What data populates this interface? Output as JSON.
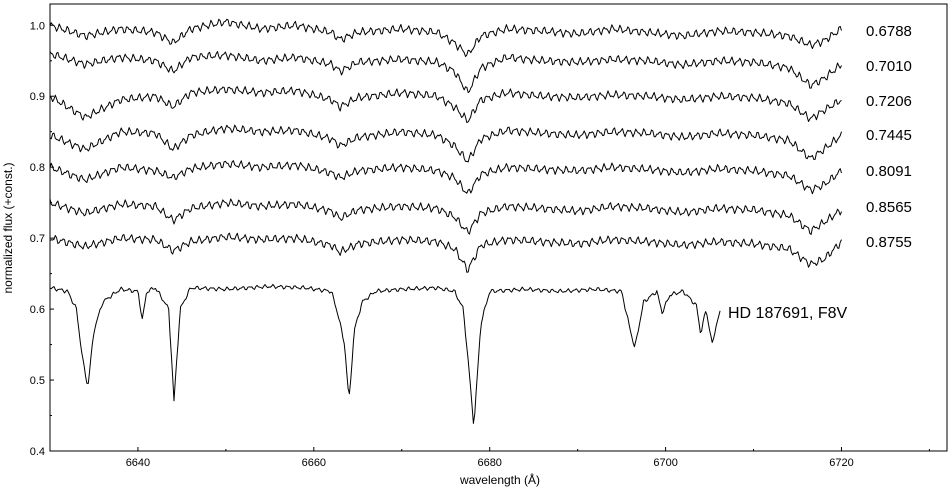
{
  "chart_data": {
    "type": "line",
    "title": "",
    "xlabel": "wavelength (Å)",
    "ylabel": "normalized flux (+const.)",
    "xlim": [
      6630,
      6732
    ],
    "ylim": [
      0.4,
      1.03
    ],
    "x_ticks": [
      6640,
      6660,
      6680,
      6700,
      6720
    ],
    "y_ticks": [
      0.4,
      0.5,
      0.6,
      0.7,
      0.8,
      0.9,
      1.0
    ],
    "x_tick_labels": [
      "6640",
      "6660",
      "6680",
      "6700",
      "6720"
    ],
    "y_tick_labels": [
      "0.4",
      "0.5",
      "0.6",
      "0.7",
      "0.8",
      "0.9",
      "1.0"
    ],
    "grid": false,
    "series": [
      {
        "name": "0.6788",
        "x": [
          6630,
          6634,
          6638,
          6642,
          6644,
          6646,
          6650,
          6654,
          6658,
          6662,
          6663,
          6665,
          6670,
          6674,
          6676,
          6677.5,
          6679,
          6682,
          6686,
          6690,
          6694,
          6698,
          6702,
          6706,
          6710,
          6714,
          6716.5,
          6718,
          6720
        ],
        "y": [
          1.0,
          0.985,
          0.995,
          0.99,
          0.975,
          0.995,
          1.005,
          0.995,
          1.0,
          0.99,
          0.98,
          0.99,
          0.995,
          0.99,
          0.975,
          0.958,
          0.985,
          0.995,
          0.992,
          0.988,
          0.995,
          0.99,
          0.985,
          0.992,
          0.99,
          0.985,
          0.972,
          0.978,
          0.995
        ]
      },
      {
        "name": "0.7010",
        "x": [
          6630,
          6634,
          6638,
          6642,
          6644,
          6646,
          6650,
          6654,
          6658,
          6662,
          6663,
          6665,
          6670,
          6674,
          6676,
          6677.5,
          6679,
          6682,
          6686,
          6690,
          6694,
          6698,
          6702,
          6706,
          6710,
          6714,
          6716.5,
          6718,
          6720
        ],
        "y": [
          0.96,
          0.945,
          0.955,
          0.95,
          0.935,
          0.955,
          0.958,
          0.95,
          0.955,
          0.945,
          0.935,
          0.948,
          0.952,
          0.948,
          0.935,
          0.905,
          0.94,
          0.955,
          0.95,
          0.948,
          0.952,
          0.95,
          0.944,
          0.95,
          0.948,
          0.94,
          0.915,
          0.925,
          0.945
        ]
      },
      {
        "name": "0.7206",
        "x": [
          6630,
          6634,
          6638,
          6642,
          6644,
          6646,
          6650,
          6654,
          6658,
          6662,
          6663,
          6665,
          6670,
          6674,
          6676,
          6677.5,
          6679,
          6682,
          6686,
          6690,
          6694,
          6698,
          6702,
          6706,
          6710,
          6714,
          6716.5,
          6718,
          6720
        ],
        "y": [
          0.9,
          0.87,
          0.895,
          0.9,
          0.885,
          0.905,
          0.91,
          0.905,
          0.908,
          0.895,
          0.885,
          0.898,
          0.905,
          0.9,
          0.885,
          0.865,
          0.895,
          0.905,
          0.9,
          0.898,
          0.902,
          0.9,
          0.895,
          0.9,
          0.898,
          0.89,
          0.868,
          0.88,
          0.895
        ]
      },
      {
        "name": "0.7445",
        "x": [
          6630,
          6634,
          6638,
          6642,
          6644,
          6646,
          6650,
          6654,
          6658,
          6662,
          6663,
          6665,
          6670,
          6674,
          6676,
          6677.5,
          6679,
          6682,
          6686,
          6690,
          6694,
          6698,
          6702,
          6706,
          6710,
          6714,
          6716.5,
          6718,
          6720
        ],
        "y": [
          0.845,
          0.825,
          0.85,
          0.848,
          0.825,
          0.845,
          0.855,
          0.85,
          0.852,
          0.84,
          0.83,
          0.842,
          0.85,
          0.845,
          0.83,
          0.808,
          0.84,
          0.852,
          0.848,
          0.845,
          0.85,
          0.848,
          0.842,
          0.848,
          0.845,
          0.838,
          0.812,
          0.825,
          0.845
        ]
      },
      {
        "name": "0.8091",
        "x": [
          6630,
          6634,
          6638,
          6642,
          6644,
          6646,
          6650,
          6654,
          6658,
          6662,
          6663,
          6665,
          6670,
          6674,
          6676,
          6677.5,
          6679,
          6682,
          6686,
          6690,
          6694,
          6698,
          6702,
          6706,
          6710,
          6714,
          6716.5,
          6718,
          6720
        ],
        "y": [
          0.8,
          0.782,
          0.8,
          0.795,
          0.785,
          0.798,
          0.805,
          0.8,
          0.803,
          0.792,
          0.785,
          0.795,
          0.8,
          0.795,
          0.785,
          0.762,
          0.79,
          0.8,
          0.797,
          0.795,
          0.8,
          0.797,
          0.792,
          0.798,
          0.795,
          0.788,
          0.768,
          0.775,
          0.795
        ]
      },
      {
        "name": "0.8565",
        "x": [
          6630,
          6634,
          6638,
          6642,
          6644,
          6646,
          6650,
          6654,
          6658,
          6662,
          6663,
          6665,
          6670,
          6674,
          6676,
          6677.5,
          6679,
          6682,
          6686,
          6690,
          6694,
          6698,
          6702,
          6706,
          6710,
          6714,
          6716.5,
          6718,
          6720
        ],
        "y": [
          0.75,
          0.735,
          0.748,
          0.745,
          0.725,
          0.742,
          0.75,
          0.745,
          0.748,
          0.738,
          0.728,
          0.74,
          0.745,
          0.742,
          0.73,
          0.708,
          0.735,
          0.745,
          0.742,
          0.738,
          0.745,
          0.742,
          0.736,
          0.742,
          0.74,
          0.732,
          0.71,
          0.722,
          0.74
        ]
      },
      {
        "name": "0.8755",
        "x": [
          6630,
          6634,
          6638,
          6642,
          6644,
          6646,
          6650,
          6654,
          6658,
          6662,
          6663,
          6665,
          6670,
          6674,
          6676,
          6677.5,
          6679,
          6682,
          6686,
          6690,
          6694,
          6698,
          6702,
          6706,
          6710,
          6714,
          6716.5,
          6718,
          6720
        ],
        "y": [
          0.7,
          0.688,
          0.7,
          0.698,
          0.682,
          0.695,
          0.702,
          0.698,
          0.7,
          0.69,
          0.68,
          0.692,
          0.698,
          0.695,
          0.685,
          0.655,
          0.69,
          0.698,
          0.695,
          0.692,
          0.698,
          0.695,
          0.69,
          0.695,
          0.692,
          0.685,
          0.663,
          0.67,
          0.695
        ]
      },
      {
        "name": "HD 187691, F8V",
        "x": [
          6630,
          6632,
          6633,
          6633.7,
          6634.3,
          6635,
          6636,
          6638,
          6640,
          6640.5,
          6641,
          6642,
          6643.5,
          6644.1,
          6644.8,
          6646,
          6650,
          6655,
          6659,
          6662,
          6662.8,
          6663.5,
          6664,
          6664.6,
          6665.5,
          6667,
          6670,
          6674,
          6676,
          6677,
          6677.6,
          6678.2,
          6679,
          6680,
          6684,
          6688,
          6692,
          6695,
          6695.8,
          6696.5,
          6697.5,
          6699,
          6699.6,
          6700.5,
          6702,
          6703.5,
          6704,
          6704.6,
          6705.3,
          6705.8,
          6706.2
        ],
        "y": [
          0.63,
          0.625,
          0.6,
          0.53,
          0.49,
          0.57,
          0.61,
          0.628,
          0.625,
          0.585,
          0.625,
          0.63,
          0.6,
          0.47,
          0.6,
          0.63,
          0.628,
          0.632,
          0.63,
          0.625,
          0.59,
          0.55,
          0.47,
          0.57,
          0.61,
          0.625,
          0.628,
          0.63,
          0.625,
          0.6,
          0.52,
          0.435,
          0.58,
          0.625,
          0.628,
          0.625,
          0.628,
          0.625,
          0.58,
          0.545,
          0.61,
          0.625,
          0.595,
          0.62,
          0.625,
          0.605,
          0.565,
          0.6,
          0.55,
          0.58,
          0.595
        ]
      }
    ]
  },
  "labels": {
    "phases": [
      "0.6788",
      "0.7010",
      "0.7206",
      "0.7445",
      "0.8091",
      "0.8565",
      "0.8755"
    ],
    "star": "HD 187691, F8V"
  }
}
